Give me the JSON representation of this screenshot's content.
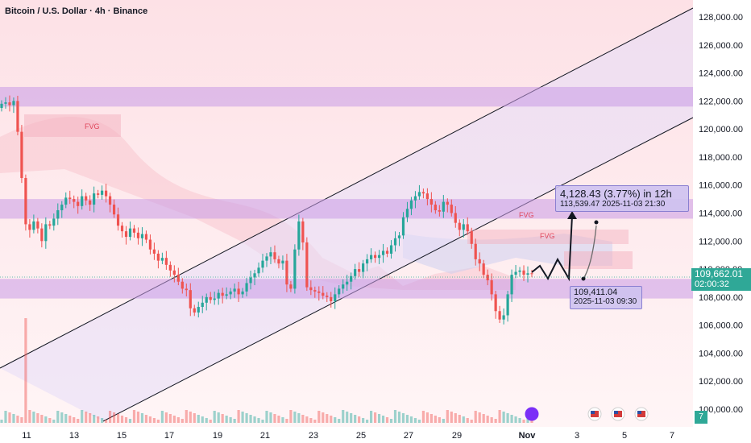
{
  "header": {
    "title": "Bitcoin / U.S. Dollar · 4h · Binance"
  },
  "chart_data": {
    "type": "candlestick",
    "title": "Bitcoin / U.S. Dollar · 4h · Binance",
    "y_range": [
      99000,
      129000
    ],
    "y_ticks": [
      "128,000.00",
      "126,000.00",
      "124,000.00",
      "122,000.00",
      "120,000.00",
      "118,000.00",
      "116,000.00",
      "114,000.00",
      "112,000.00",
      "110,000.00",
      "108,000.00",
      "106,000.00",
      "104,000.00",
      "102,000.00",
      "100,000.00"
    ],
    "x_ticks": [
      {
        "label": "11",
        "bold": false
      },
      {
        "label": "13",
        "bold": false
      },
      {
        "label": "15",
        "bold": false
      },
      {
        "label": "17",
        "bold": false
      },
      {
        "label": "19",
        "bold": false
      },
      {
        "label": "21",
        "bold": false
      },
      {
        "label": "23",
        "bold": false
      },
      {
        "label": "25",
        "bold": false
      },
      {
        "label": "27",
        "bold": false
      },
      {
        "label": "29",
        "bold": false
      },
      {
        "label": "Nov",
        "bold": true
      },
      {
        "label": "3",
        "bold": false
      },
      {
        "label": "5",
        "bold": false
      },
      {
        "label": "7",
        "bold": false
      }
    ],
    "current_price": "109,662.01",
    "countdown": "02:00:32",
    "fvg_labels": [
      "FVG",
      "FVG",
      "FVG"
    ],
    "measure_top": {
      "line1": "4,128.43 (3.77%) in 12h",
      "line2": "113,539.47    2025-11-03  21:30"
    },
    "measure_bottom": {
      "line1": "109,411.04",
      "line2": "2025-11-03 09:30"
    },
    "zones": [
      {
        "name": "upper-supply",
        "from": 121600,
        "to": 123000
      },
      {
        "name": "middle-supply",
        "from": 113600,
        "to": 115000
      },
      {
        "name": "demand",
        "from": 107900,
        "to": 109300
      }
    ],
    "channel": "ascending",
    "close_series": [
      121800,
      121900,
      121700,
      122000,
      119800,
      116500,
      113200,
      112800,
      113400,
      112900,
      112000,
      113200,
      113100,
      113600,
      114200,
      114600,
      115100,
      115000,
      114800,
      114500,
      115200,
      114900,
      114600,
      115400,
      115300,
      115600,
      115200,
      114600,
      113900,
      113100,
      112700,
      112300,
      112900,
      112600,
      112200,
      112500,
      112100,
      111400,
      111100,
      110600,
      110800,
      110300,
      109900,
      109600,
      109100,
      108600,
      108500,
      107200,
      106900,
      107300,
      107600,
      108000,
      107800,
      107900,
      108300,
      108100,
      108200,
      108400,
      108600,
      108200,
      108400,
      109000,
      109400,
      109700,
      110100,
      110600,
      110900,
      111200,
      110700,
      110400,
      110600,
      108900,
      108600,
      111400,
      113400,
      111900,
      108700,
      108500,
      108400,
      108300,
      108100,
      108000,
      107700,
      108200,
      108600,
      108900,
      109100,
      109500,
      110000,
      109800,
      110400,
      110700,
      111000,
      110800,
      111000,
      111300,
      111100,
      111700,
      112200,
      112400,
      113700,
      114300,
      114900,
      115200,
      115500,
      115400,
      115000,
      114600,
      114200,
      114100,
      114800,
      114600,
      114000,
      113300,
      112800,
      113200,
      112700,
      111800,
      110700,
      110400,
      109600,
      109200,
      108200,
      107000,
      106400,
      106700,
      108200,
      109600,
      109800,
      109900,
      109600,
      109700,
      109662
    ],
    "volume_spike_index": 6
  }
}
